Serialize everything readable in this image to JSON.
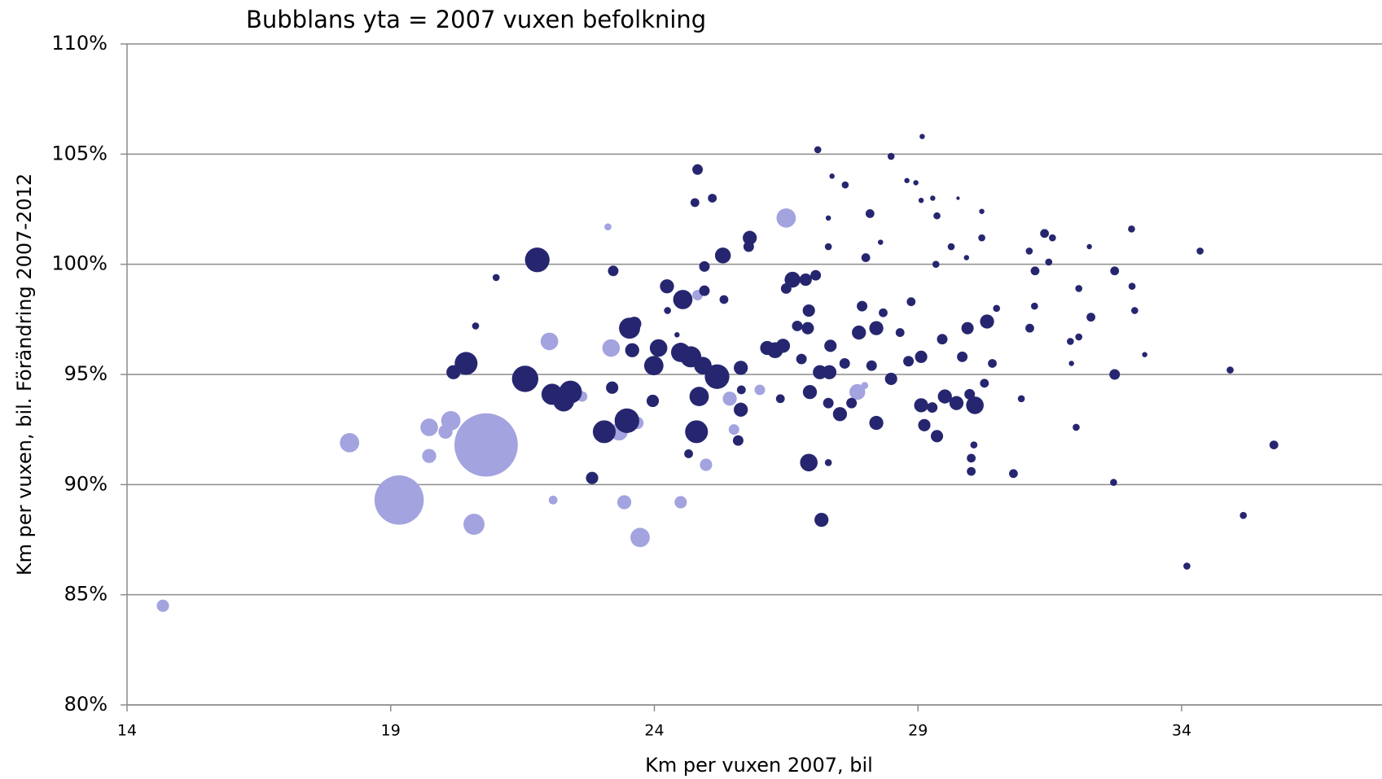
{
  "chart_data": {
    "type": "bubble",
    "title": "Bubblans yta = 2007 vuxen befolkning",
    "xlabel": "Km per vuxen 2007, bil",
    "ylabel": "Km per vuxen, bil. Förändring  2007-2012",
    "xlim": [
      14,
      37.8
    ],
    "xticks": [
      14,
      19,
      24,
      29,
      34
    ],
    "ylim": [
      80,
      110
    ],
    "yticks": [
      {
        "value": 80,
        "label": "80%"
      },
      {
        "value": 85,
        "label": "85%"
      },
      {
        "value": 90,
        "label": "90%"
      },
      {
        "value": 95,
        "label": "95%"
      },
      {
        "value": 100,
        "label": "100%"
      },
      {
        "value": 105,
        "label": "105%"
      },
      {
        "value": 110,
        "label": "110%"
      }
    ],
    "grid": true,
    "series": [
      {
        "color": "#a3a3e0",
        "x": [
          14.68,
          18.22,
          19.16,
          20.81,
          19.73,
          20.14,
          20.04,
          19.73,
          20.58,
          22.01,
          22.08,
          22.63,
          23.12,
          23.18,
          23.33,
          23.43,
          23.68,
          23.73,
          24.5,
          24.82,
          24.98,
          25.43,
          25.51,
          26.0,
          26.5,
          27.85,
          27.99
        ],
        "values": [
          84.5,
          91.9,
          89.3,
          91.8,
          92.6,
          92.9,
          92.4,
          91.3,
          88.2,
          96.5,
          89.3,
          94.0,
          101.7,
          96.2,
          92.4,
          89.2,
          92.8,
          87.6,
          89.2,
          98.6,
          90.9,
          93.9,
          92.5,
          94.3,
          102.1,
          94.2,
          94.5
        ],
        "sizes": [
          49,
          121,
          784,
          1296,
          100,
          121,
          64,
          64,
          144,
          100,
          25,
          36,
          16,
          100,
          100,
          64,
          49,
          121,
          49,
          36,
          49,
          64,
          36,
          36,
          121,
          81,
          16
        ]
      },
      {
        "color": "#262670",
        "x": [
          21.78,
          20.43,
          20.19,
          21.55,
          22.06,
          22.28,
          22.41,
          23.05,
          23.48,
          22.82,
          23.22,
          23.2,
          23.53,
          23.62,
          23.58,
          23.99,
          24.08,
          23.97,
          24.24,
          24.54,
          24.5,
          24.69,
          24.8,
          24.85,
          24.92,
          25.19,
          24.65,
          24.82,
          24.77,
          25.1,
          24.95,
          25.3,
          25.32,
          24.95,
          25.64,
          25.64,
          25.59,
          25.81,
          25.79,
          25.65,
          26.14,
          26.29,
          26.44,
          26.39,
          26.62,
          26.5,
          26.87,
          27.06,
          26.93,
          26.91,
          26.71,
          26.79,
          26.95,
          26.93,
          27.17,
          27.1,
          27.37,
          27.62,
          27.3,
          27.3,
          27.14,
          27.32,
          27.52,
          27.3,
          27.34,
          27.3,
          27.61,
          27.74,
          27.88,
          27.94,
          28.09,
          28.21,
          28.12,
          28.21,
          28.01,
          28.34,
          28.49,
          28.79,
          29.08,
          28.82,
          28.87,
          29.06,
          29.06,
          29.12,
          29.36,
          29.27,
          28.49,
          28.66,
          29.36,
          29.46,
          29.73,
          29.51,
          29.94,
          29.84,
          30.08,
          30.01,
          30.01,
          30.06,
          29.98,
          30.31,
          30.21,
          30.21,
          30.41,
          30.26,
          30.49,
          30.81,
          30.96,
          31.12,
          31.22,
          31.21,
          31.4,
          31.55,
          31.48,
          31.11,
          31.89,
          32.05,
          32.05,
          31.91,
          32.25,
          32.28,
          32.0,
          32.73,
          32.73,
          32.71,
          33.06,
          33.05,
          33.11,
          33.3,
          34.35,
          34.92,
          35.17,
          35.75,
          34.1,
          21.0,
          20.61,
          24.43,
          24.17,
          24.25,
          28.29,
          29.34,
          29.63,
          29.92,
          29.28,
          29.76,
          28.96,
          29.06
        ],
        "values": [
          100.2,
          95.5,
          95.1,
          94.8,
          94.1,
          93.8,
          94.2,
          92.4,
          92.9,
          90.3,
          99.7,
          94.4,
          97.1,
          97.3,
          96.1,
          95.4,
          96.2,
          93.8,
          99.0,
          98.4,
          96.0,
          95.8,
          92.4,
          94.0,
          95.4,
          94.9,
          91.4,
          104.3,
          102.8,
          103.0,
          99.9,
          100.4,
          98.4,
          98.8,
          95.3,
          93.4,
          92.0,
          101.2,
          100.8,
          94.3,
          96.2,
          96.1,
          96.3,
          93.9,
          99.3,
          98.9,
          99.3,
          99.5,
          97.9,
          97.1,
          97.2,
          95.7,
          94.2,
          91.0,
          88.4,
          105.2,
          104.0,
          103.6,
          102.1,
          100.8,
          95.1,
          95.1,
          93.2,
          93.7,
          96.3,
          91.0,
          95.5,
          93.7,
          96.9,
          98.1,
          102.3,
          97.1,
          95.4,
          92.8,
          100.3,
          97.8,
          104.9,
          103.8,
          105.8,
          95.6,
          98.3,
          95.8,
          93.6,
          92.7,
          92.2,
          93.5,
          94.8,
          96.9,
          102.2,
          96.6,
          93.7,
          94.0,
          97.1,
          95.8,
          93.6,
          90.6,
          91.2,
          91.8,
          94.1,
          97.4,
          101.2,
          102.4,
          95.5,
          94.6,
          98.0,
          90.5,
          93.9,
          97.1,
          99.7,
          98.1,
          101.4,
          101.2,
          100.1,
          100.6,
          96.5,
          96.7,
          98.9,
          95.5,
          100.8,
          97.6,
          92.6,
          95.0,
          99.7,
          90.1,
          99.0,
          101.6,
          97.9,
          95.9,
          100.6,
          95.2,
          88.6,
          91.8,
          86.3,
          99.4,
          97.2,
          96.8,
          99.1,
          97.9,
          101.0,
          100.0,
          100.8,
          100.3,
          103.0,
          103.0,
          103.7,
          102.9
        ],
        "sizes": [
          196,
          169,
          64,
          225,
          144,
          144,
          169,
          169,
          196,
          49,
          36,
          49,
          144,
          64,
          64,
          121,
          100,
          49,
          64,
          121,
          121,
          144,
          169,
          121,
          100,
          196,
          25,
          36,
          25,
          25,
          36,
          81,
          25,
          36,
          64,
          64,
          36,
          64,
          36,
          25,
          64,
          81,
          64,
          25,
          81,
          36,
          49,
          36,
          49,
          49,
          36,
          36,
          64,
          100,
          64,
          16,
          9,
          16,
          9,
          16,
          64,
          64,
          64,
          36,
          49,
          16,
          36,
          36,
          64,
          36,
          25,
          64,
          36,
          64,
          25,
          25,
          16,
          9,
          9,
          36,
          25,
          49,
          64,
          49,
          49,
          36,
          49,
          25,
          16,
          36,
          64,
          64,
          49,
          36,
          100,
          25,
          25,
          16,
          36,
          64,
          16,
          9,
          25,
          25,
          16,
          25,
          16,
          25,
          25,
          16,
          25,
          16,
          16,
          16,
          16,
          16,
          16,
          9,
          9,
          25,
          16,
          36,
          25,
          16,
          16,
          16,
          16,
          9,
          16,
          16,
          16,
          25,
          16,
          16,
          16,
          9,
          9,
          16,
          9,
          16,
          16,
          9,
          9,
          4,
          9,
          9
        ]
      }
    ]
  }
}
